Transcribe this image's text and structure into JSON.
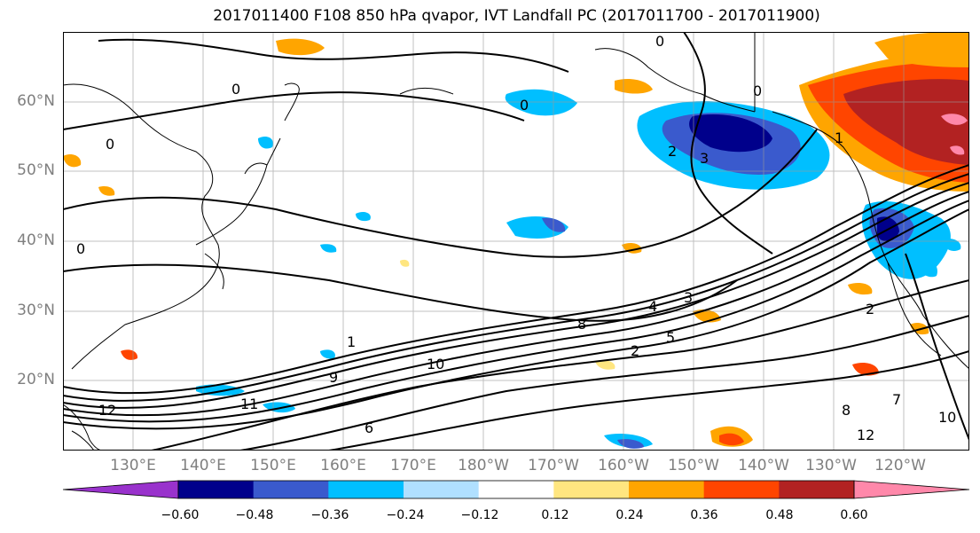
{
  "title": "2017011400 F108 850 hPa qvapor, IVT Landfall PC (2017011700 - 2017011900)",
  "lat_labels": [
    "60°N",
    "50°N",
    "40°N",
    "30°N",
    "20°N"
  ],
  "lon_labels": [
    "130°E",
    "140°E",
    "150°E",
    "160°E",
    "170°E",
    "180°W",
    "170°W",
    "160°W",
    "150°W",
    "140°W",
    "130°W",
    "120°W"
  ],
  "colorbar": {
    "ticks": [
      "−0.60",
      "−0.48",
      "−0.36",
      "−0.24",
      "−0.12",
      "0.12",
      "0.24",
      "0.36",
      "0.48",
      "0.60"
    ],
    "colors": [
      "#9932cc",
      "#00008b",
      "#3a5acd",
      "#00bfff",
      "#b0e0ff",
      "#ffffff",
      "#ffe680",
      "#ffa500",
      "#ff4500",
      "#b22222",
      "#ff88aa"
    ]
  },
  "contour_labels": [
    "0",
    "0",
    "0",
    "0",
    "0",
    "0",
    "1",
    "1",
    "2",
    "3",
    "3",
    "4",
    "5",
    "8",
    "9",
    "10",
    "10",
    "11",
    "12",
    "12",
    "6",
    "8",
    "2",
    "2",
    "7"
  ]
}
